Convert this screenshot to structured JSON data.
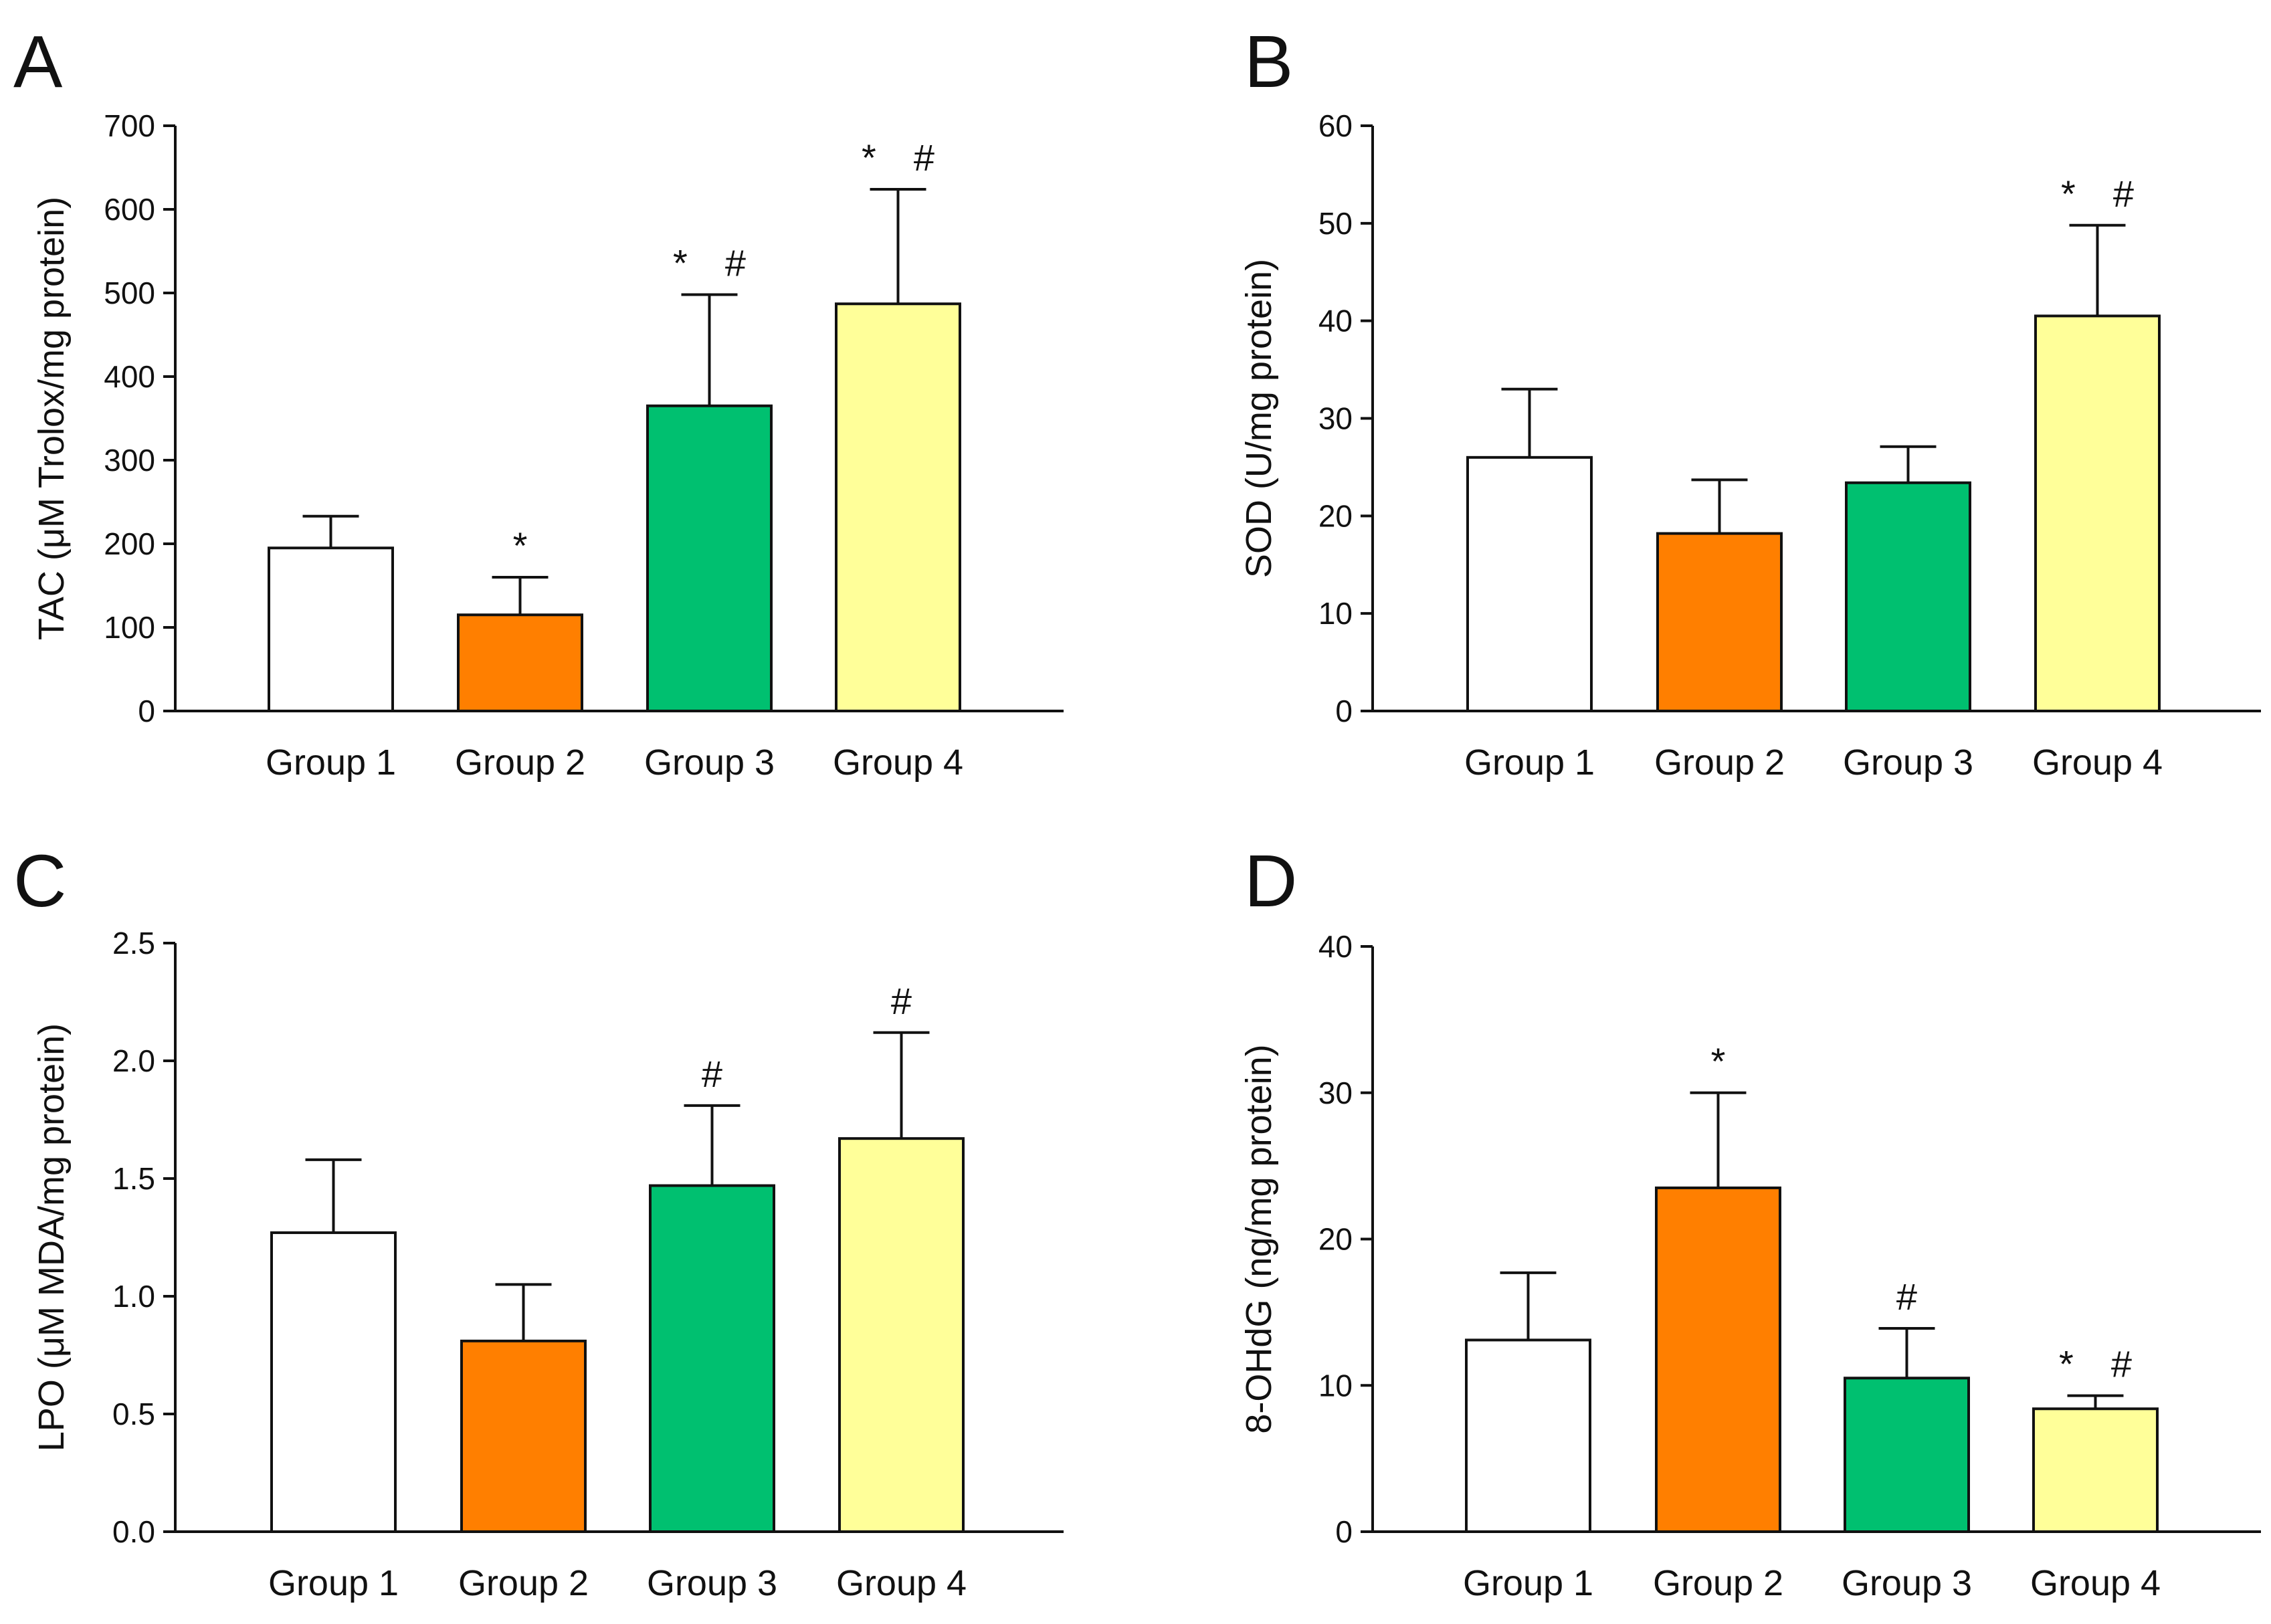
{
  "chart_data": [
    {
      "panel": "A",
      "type": "bar",
      "categories": [
        "Group 1",
        "Group 2",
        "Group 3",
        "Group 4"
      ],
      "values": [
        195,
        115,
        365,
        487
      ],
      "errors": [
        38,
        45,
        133,
        137
      ],
      "annotations": [
        "",
        "*",
        "* #",
        "* #"
      ],
      "colors": [
        "#ffffff",
        "#ff7f00",
        "#00c070",
        "#ffff99"
      ],
      "ylabel": "TAC (μM Trolox/mg protein)",
      "ylim": [
        0,
        700
      ],
      "yticks": [
        "0",
        "100",
        "200",
        "300",
        "400",
        "500",
        "600",
        "700"
      ]
    },
    {
      "panel": "B",
      "type": "bar",
      "categories": [
        "Group 1",
        "Group 2",
        "Group 3",
        "Group 4"
      ],
      "values": [
        26,
        18.2,
        23.4,
        40.5
      ],
      "errors": [
        7,
        5.5,
        3.7,
        9.3
      ],
      "annotations": [
        "",
        "",
        "",
        "* #"
      ],
      "colors": [
        "#ffffff",
        "#ff7f00",
        "#00c070",
        "#ffff99"
      ],
      "ylabel": "SOD (U/mg protein)",
      "ylim": [
        0,
        60
      ],
      "yticks": [
        "0",
        "10",
        "20",
        "30",
        "40",
        "50",
        "60"
      ]
    },
    {
      "panel": "C",
      "type": "bar",
      "categories": [
        "Group 1",
        "Group 2",
        "Group 3",
        "Group 4"
      ],
      "values": [
        1.27,
        0.81,
        1.47,
        1.67
      ],
      "errors": [
        0.31,
        0.24,
        0.34,
        0.45
      ],
      "annotations": [
        "",
        "",
        "#",
        "#"
      ],
      "colors": [
        "#ffffff",
        "#ff7f00",
        "#00c070",
        "#ffff99"
      ],
      "ylabel": "LPO (μM MDA/mg protein)",
      "ylim": [
        0,
        2.5
      ],
      "yticks": [
        "0.0",
        "0.5",
        "1.0",
        "1.5",
        "2.0",
        "2.5"
      ]
    },
    {
      "panel": "D",
      "type": "bar",
      "categories": [
        "Group 1",
        "Group 2",
        "Group 3",
        "Group 4"
      ],
      "values": [
        13.1,
        23.5,
        10.5,
        8.4
      ],
      "errors": [
        4.6,
        6.5,
        3.4,
        0.9
      ],
      "annotations": [
        "",
        "*",
        "#",
        "* #"
      ],
      "colors": [
        "#ffffff",
        "#ff7f00",
        "#00c070",
        "#ffff99"
      ],
      "ylabel": "8-OHdG (ng/mg protein)",
      "ylim": [
        0,
        40
      ],
      "yticks": [
        "0",
        "10",
        "20",
        "30",
        "40"
      ]
    }
  ]
}
